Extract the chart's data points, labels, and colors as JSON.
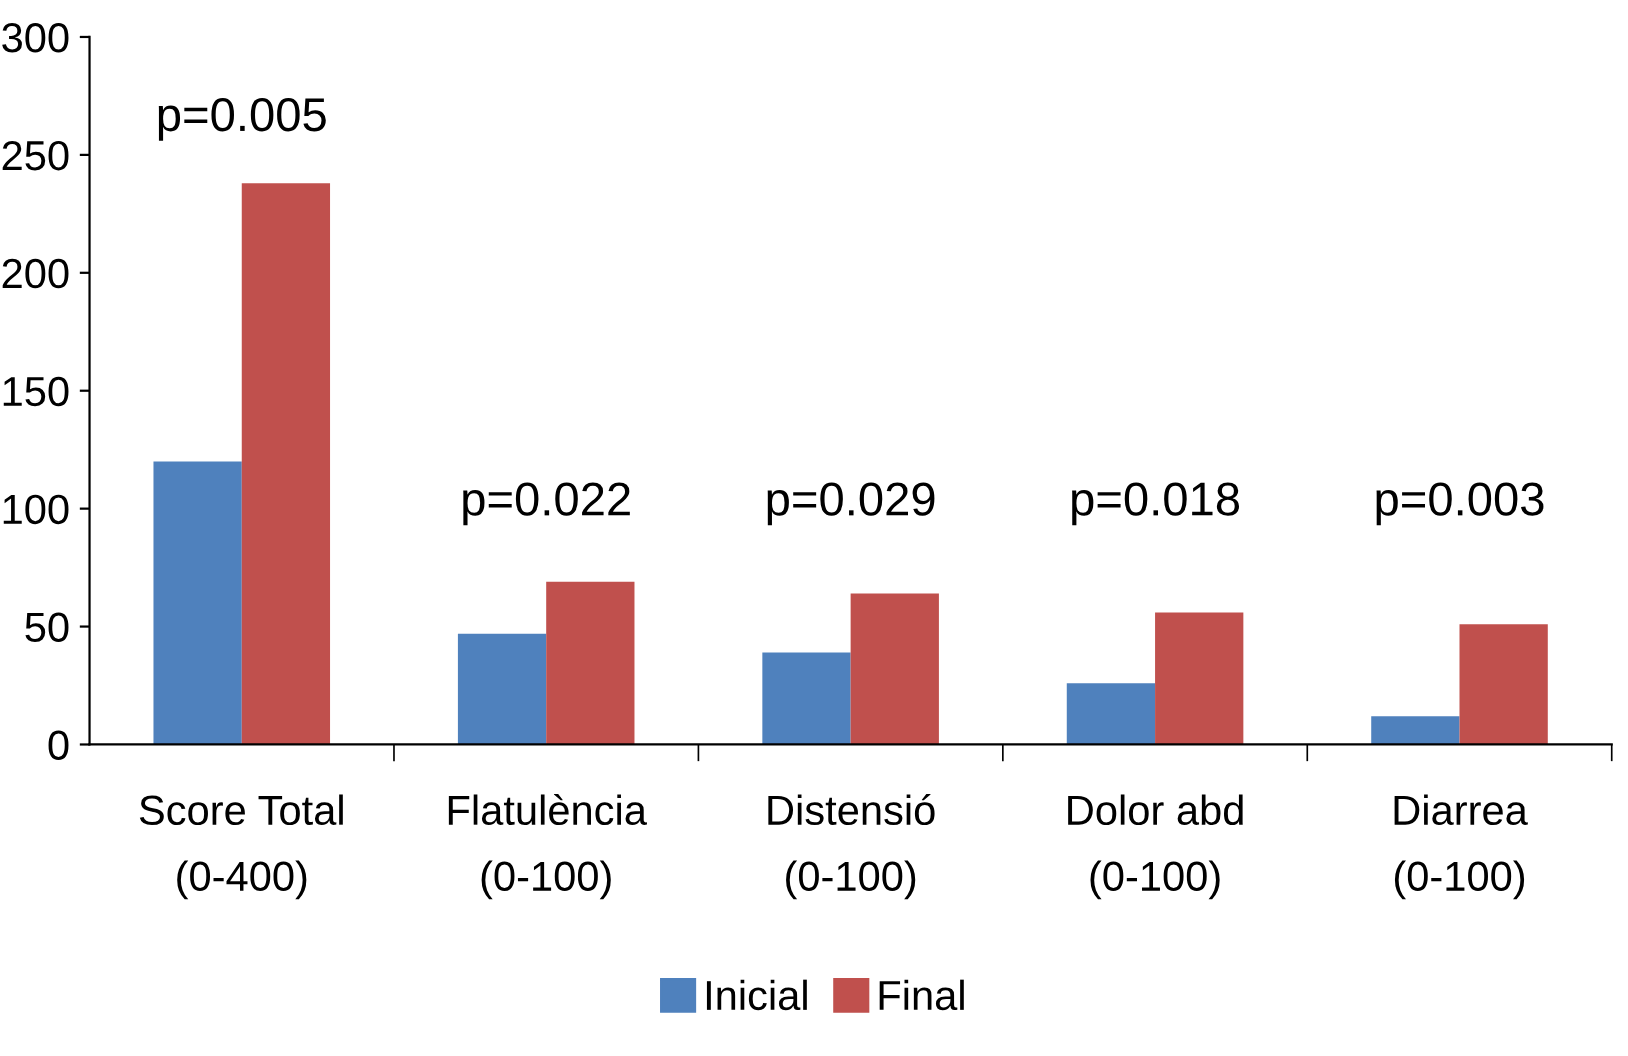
{
  "chart_data": {
    "type": "bar",
    "categories": [
      "Score Total\n(0-400)",
      "Flatulència\n(0-100)",
      "Distensió\n(0-100)",
      "Dolor abd\n(0-100)",
      "Diarrea\n(0-100)"
    ],
    "series": [
      {
        "name": "Inicial",
        "color": "#4f81bd",
        "values": [
          120,
          47,
          39,
          26,
          12
        ]
      },
      {
        "name": "Final",
        "color": "#c0504d",
        "values": [
          238,
          69,
          64,
          56,
          51
        ]
      }
    ],
    "ylim": [
      0,
      300
    ],
    "yticks": [
      0,
      50,
      100,
      150,
      200,
      250,
      300
    ],
    "grid": false,
    "legend": "bottom",
    "annotations": [
      "p=0.005",
      "p=0.022",
      "p=0.029",
      "p=0.018",
      "p=0.003"
    ]
  }
}
